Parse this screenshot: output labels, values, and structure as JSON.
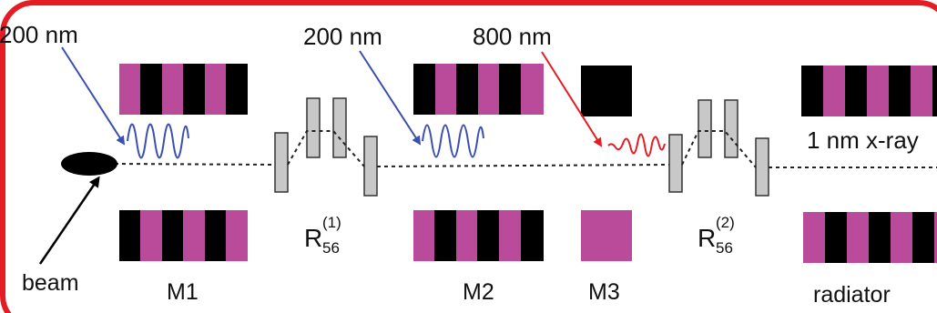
{
  "labels": {
    "wavelength_1": "200 nm",
    "wavelength_2": "200 nm",
    "wavelength_3": "800 nm",
    "xray": "1 nm x-ray",
    "beam": "beam",
    "m1": "M1",
    "m2": "M2",
    "m3": "M3",
    "radiator": "radiator",
    "chicane_1": {
      "base": "R",
      "sup": "(1)",
      "sub": "56"
    },
    "chicane_2": {
      "base": "R",
      "sup": "(2)",
      "sub": "56"
    }
  },
  "colors": {
    "frame": "#e41c23",
    "magnet_dark": "#000000",
    "magnet_light": "#b94b9a",
    "seed_200nm": "#3a4fb0",
    "seed_800nm": "#e41c23",
    "chicane_magnet": "#c8c8c8"
  }
}
